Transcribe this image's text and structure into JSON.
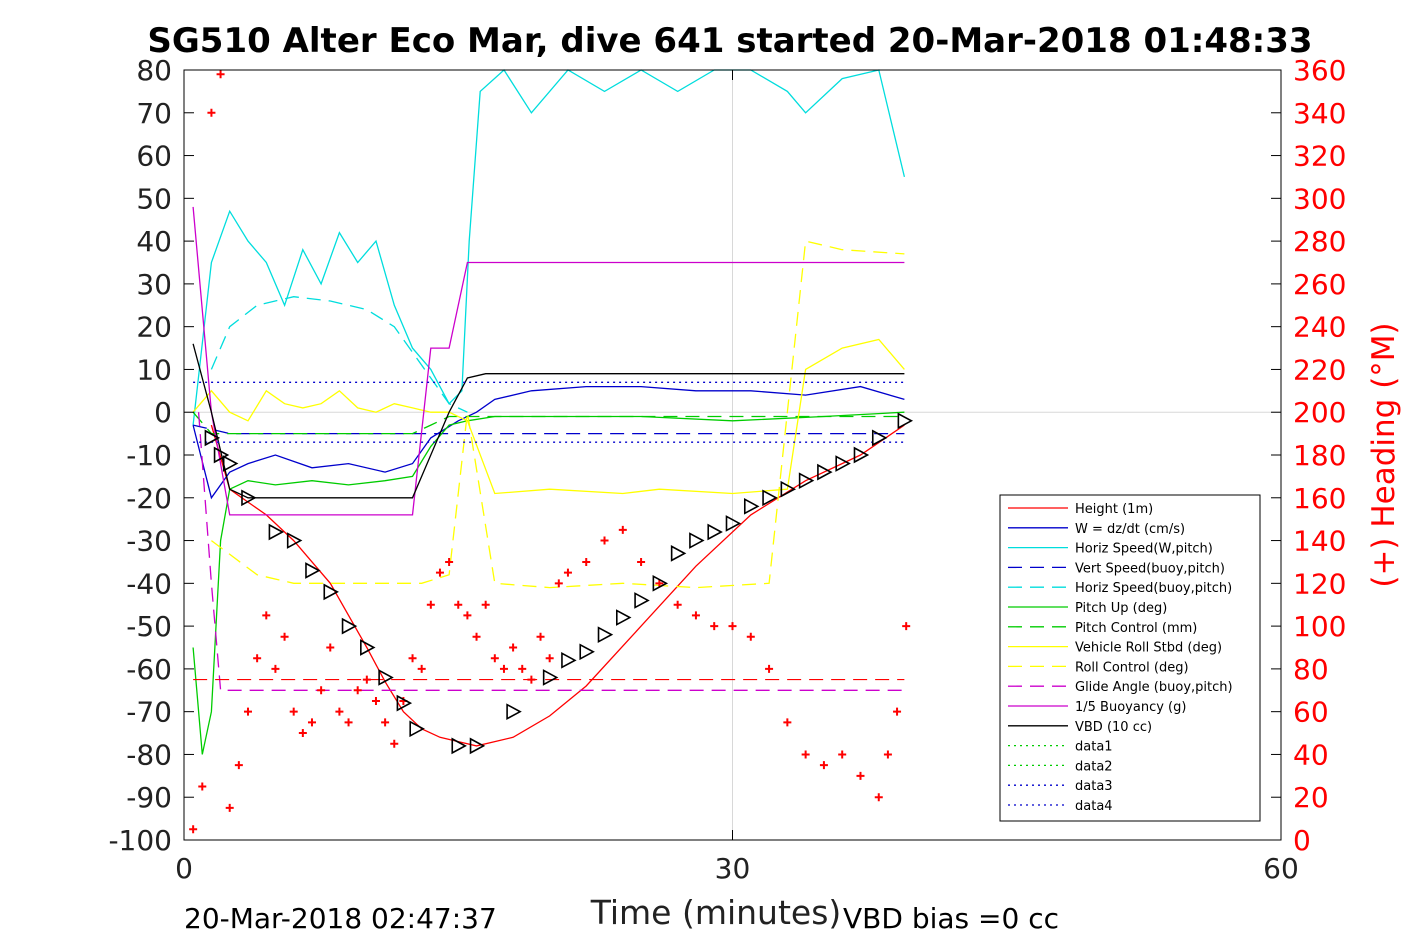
{
  "chart_data": {
    "type": "line",
    "title": "SG510 Alter Eco Mar, dive 641 started 20-Mar-2018 01:48:33",
    "xlabel": "Time (minutes)",
    "ylabel_right": "(+) Heading (°M)",
    "footer_left": "20-Mar-2018 02:47:37",
    "footer_right": "VBD bias =0 cc",
    "xlim": [
      0,
      60
    ],
    "ylim": [
      -100,
      80
    ],
    "ylim_right": [
      0,
      360
    ],
    "x_ticks": [
      "0",
      "30",
      "60"
    ],
    "y_ticks": [
      "80",
      "70",
      "60",
      "50",
      "40",
      "30",
      "20",
      "10",
      "0",
      "-10",
      "-20",
      "-30",
      "-40",
      "-50",
      "-60",
      "-70",
      "-80",
      "-90",
      "-100"
    ],
    "y_ticks_right": [
      "360",
      "340",
      "320",
      "300",
      "280",
      "260",
      "240",
      "220",
      "200",
      "180",
      "160",
      "140",
      "120",
      "100",
      "80",
      "60",
      "40",
      "20",
      "0"
    ],
    "grid": true,
    "legend_position": "lower-right",
    "colors": {
      "axis": "#000000",
      "right_axis": "#ff0000",
      "grid": "#d8d8d8"
    },
    "series": [
      {
        "name": "Height (1m)",
        "color": "#ff0000",
        "style": "solid",
        "x": [
          1.5,
          2.5,
          3.5,
          4.5,
          6,
          8,
          10,
          11,
          12,
          13,
          14,
          15,
          16,
          17,
          18,
          20,
          22,
          25,
          28,
          31,
          34,
          37,
          39.4
        ],
        "y": [
          -3,
          -18,
          -21,
          -24,
          -30,
          -40,
          -55,
          -63,
          -70,
          -74,
          -76,
          -77,
          -78,
          -77,
          -76,
          -71,
          -64,
          -50,
          -36,
          -24,
          -16,
          -10,
          -3
        ]
      },
      {
        "name": "W = dz/dt (cm/s)",
        "color": "#0000cc",
        "style": "solid",
        "x": [
          0.5,
          1.5,
          2.5,
          3.5,
          5,
          7,
          9,
          11,
          12.5,
          13.5,
          15,
          16,
          17,
          19,
          22,
          25,
          28,
          31,
          34,
          37,
          39.4
        ],
        "y": [
          -3,
          -20,
          -14,
          -12,
          -10,
          -13,
          -12,
          -14,
          -12,
          -6,
          -2,
          0,
          3,
          5,
          6,
          6,
          5,
          5,
          4,
          6,
          3
        ]
      },
      {
        "name": "Horiz Speed(W,pitch)",
        "color": "#00dddd",
        "style": "solid",
        "x": [
          0.5,
          1.5,
          2.5,
          3.5,
          4.5,
          5.5,
          6.5,
          7.5,
          8.5,
          9.5,
          10.5,
          11.5,
          12.5,
          13.5,
          14.5,
          15.2,
          15.6,
          16.2,
          17.5,
          19,
          21,
          23,
          25,
          27,
          29,
          31,
          33,
          34,
          36,
          38,
          39.4
        ],
        "y": [
          -3,
          35,
          47,
          40,
          35,
          25,
          38,
          30,
          42,
          35,
          40,
          25,
          15,
          10,
          2,
          5,
          40,
          75,
          80,
          70,
          80,
          75,
          80,
          75,
          80,
          80,
          75,
          70,
          78,
          80,
          55
        ]
      },
      {
        "name": "Vert Speed(buoy,pitch)",
        "color": "#0000cc",
        "style": "dash",
        "x": [
          0.5,
          1.5,
          2.5,
          39.4
        ],
        "y": [
          -3,
          -4,
          -5,
          -5
        ]
      },
      {
        "name": "Horiz Speed(buoy,pitch)",
        "color": "#00dddd",
        "style": "dash",
        "x": [
          1.5,
          2.5,
          4,
          6,
          8,
          10,
          11.5,
          12.5,
          13.5,
          14.5,
          15.5
        ],
        "y": [
          10,
          20,
          25,
          27,
          26,
          24,
          20,
          14,
          8,
          2,
          0
        ]
      },
      {
        "name": "Pitch Up (deg)",
        "color": "#00cc00",
        "style": "solid",
        "x": [
          0.5,
          1.0,
          1.5,
          2.0,
          2.5,
          3.5,
          5,
          7,
          9,
          11,
          12.5,
          13.5,
          14.5,
          15.5,
          17,
          20,
          25,
          30,
          35,
          39.4
        ],
        "y": [
          -55,
          -80,
          -70,
          -30,
          -18,
          -16,
          -17,
          -16,
          -17,
          -16,
          -15,
          -8,
          -3,
          -2,
          -1,
          -1,
          -1,
          -2,
          -1,
          0
        ]
      },
      {
        "name": "Pitch Control (mm)",
        "color": "#00cc00",
        "style": "dash",
        "x": [
          0.5,
          1.5,
          2.5,
          12.5,
          13.5,
          14.5,
          39.4
        ],
        "y": [
          0,
          -5,
          -5,
          -5,
          -3,
          -1,
          -1
        ]
      },
      {
        "name": "Vehicle Roll Stbd (deg)",
        "color": "#ffff00",
        "style": "solid",
        "x": [
          0.5,
          1.5,
          2.5,
          3.5,
          4.5,
          5.5,
          6.5,
          7.5,
          8.5,
          9.5,
          10.5,
          11.5,
          12.5,
          13.5,
          14.5,
          15.5,
          17,
          20,
          24,
          26,
          30,
          33,
          34,
          36,
          38,
          39.4
        ],
        "y": [
          0,
          5,
          0,
          -2,
          5,
          2,
          1,
          2,
          5,
          1,
          0,
          2,
          1,
          0,
          0,
          -2,
          -19,
          -18,
          -19,
          -18,
          -19,
          -18,
          10,
          15,
          17,
          10
        ]
      },
      {
        "name": "Roll Control (deg)",
        "color": "#ffff00",
        "style": "dash",
        "x": [
          1.5,
          4,
          6,
          9,
          11,
          13,
          14.5,
          15.5,
          17,
          20,
          24,
          28,
          32,
          34,
          36,
          39.4
        ],
        "y": [
          -30,
          -38,
          -40,
          -40,
          -40,
          -40,
          -38,
          0,
          -40,
          -41,
          -40,
          -41,
          -40,
          40,
          38,
          37
        ]
      },
      {
        "name": "Glide Angle (buoy,pitch)",
        "color": "#cc00cc",
        "style": "dash",
        "x": [
          0.8,
          1.5,
          2.0,
          39.4
        ],
        "y": [
          0,
          -40,
          -65,
          -65
        ]
      },
      {
        "name": "1/5 Buoyancy (g)",
        "color": "#cc00cc",
        "style": "solid",
        "x": [
          0.5,
          1.5,
          2.5,
          4,
          7,
          10,
          12.5,
          13.5,
          14.5,
          15.5,
          16,
          39.4
        ],
        "y": [
          48,
          0,
          -24,
          -24,
          -24,
          -24,
          -24,
          15,
          15,
          35,
          35,
          35
        ]
      },
      {
        "name": "VBD (10 cc)",
        "color": "#000000",
        "style": "solid",
        "x": [
          0.5,
          1.5,
          2.5,
          3.5,
          12.5,
          13.5,
          14.5,
          15.5,
          16.5,
          39.4
        ],
        "y": [
          16,
          0,
          -18,
          -20,
          -20,
          -10,
          0,
          8,
          9,
          9
        ]
      },
      {
        "name": "data1",
        "color": "#00cc00",
        "style": "dot",
        "x": [],
        "y": []
      },
      {
        "name": "data2",
        "color": "#00cc00",
        "style": "dot",
        "x": [],
        "y": []
      },
      {
        "name": "data3",
        "color": "#0000cc",
        "style": "dot",
        "x": [
          0.5,
          39.4
        ],
        "y": [
          7,
          7
        ]
      },
      {
        "name": "data4",
        "color": "#0000cc",
        "style": "dot",
        "x": [
          0.5,
          39.4
        ],
        "y": [
          -7,
          -7
        ]
      }
    ],
    "heading_reference": {
      "color": "#ff0000",
      "style": "dash",
      "x": [
        0.5,
        39.4
      ],
      "value_deg": 75
    },
    "heading_points": {
      "color": "#ff0000",
      "marker": "+",
      "x": [
        0.5,
        1.0,
        1.5,
        2.0,
        2.5,
        3.0,
        3.5,
        4.0,
        4.5,
        5.0,
        5.5,
        6.0,
        6.5,
        7.0,
        7.5,
        8.0,
        8.5,
        9.0,
        9.5,
        10.0,
        10.5,
        11.0,
        11.5,
        12.0,
        12.5,
        13.0,
        13.5,
        14.0,
        14.5,
        15.0,
        15.5,
        16.0,
        16.5,
        17.0,
        17.5,
        18.0,
        18.5,
        19.0,
        19.5,
        20.0,
        20.5,
        21.0,
        22.0,
        23.0,
        24.0,
        25.0,
        26.0,
        27.0,
        28.0,
        29.0,
        30.0,
        31.0,
        32.0,
        33.0,
        34.0,
        35.0,
        36.0,
        37.0,
        38.0,
        38.5,
        39.0,
        39.5
      ],
      "y": [
        5,
        25,
        340,
        358,
        15,
        35,
        60,
        85,
        105,
        80,
        95,
        60,
        50,
        55,
        70,
        90,
        60,
        55,
        70,
        75,
        65,
        55,
        45,
        65,
        85,
        80,
        110,
        125,
        130,
        110,
        105,
        95,
        110,
        85,
        80,
        90,
        80,
        75,
        95,
        85,
        120,
        125,
        130,
        140,
        145,
        130,
        120,
        110,
        105,
        100,
        100,
        95,
        80,
        55,
        40,
        35,
        40,
        30,
        20,
        40,
        60,
        100
      ]
    },
    "vbd_markers": {
      "color": "#000000",
      "marker": "triangle",
      "x": [
        1.5,
        2.0,
        2.5,
        3.5,
        5,
        6,
        7,
        8,
        9,
        10,
        11,
        12,
        12.7,
        15,
        16,
        18,
        20,
        21,
        22,
        23,
        24,
        25,
        26,
        27,
        28,
        29,
        30,
        31,
        32,
        33,
        34,
        35,
        36,
        37,
        38,
        39.4
      ],
      "y": [
        -6,
        -10,
        -12,
        -20,
        -28,
        -30,
        -37,
        -42,
        -50,
        -55,
        -62,
        -68,
        -74,
        -78,
        -78,
        -70,
        -62,
        -58,
        -56,
        -52,
        -48,
        -44,
        -40,
        -33,
        -30,
        -28,
        -26,
        -22,
        -20,
        -18,
        -16,
        -14,
        -12,
        -10,
        -6,
        -2
      ]
    }
  }
}
